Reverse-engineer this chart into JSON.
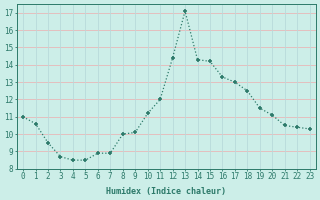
{
  "x": [
    0,
    1,
    2,
    3,
    4,
    5,
    6,
    7,
    8,
    9,
    10,
    11,
    12,
    13,
    14,
    15,
    16,
    17,
    18,
    19,
    20,
    21,
    22,
    23
  ],
  "y": [
    11.0,
    10.6,
    9.5,
    8.7,
    8.5,
    8.5,
    8.9,
    8.9,
    10.0,
    10.1,
    11.2,
    12.0,
    14.4,
    17.1,
    14.3,
    14.2,
    13.3,
    13.0,
    12.5,
    11.5,
    11.1,
    10.5,
    10.4,
    10.3
  ],
  "line_color": "#2d7a6a",
  "marker": "+",
  "bg_color": "#cceee8",
  "grid_color_h": "#e8b8b8",
  "grid_color_v": "#b8dada",
  "xlabel": "Humidex (Indice chaleur)",
  "ylim": [
    8,
    17.5
  ],
  "xlim": [
    -0.5,
    23.5
  ],
  "yticks": [
    8,
    9,
    10,
    11,
    12,
    13,
    14,
    15,
    16,
    17
  ],
  "xticks": [
    0,
    1,
    2,
    3,
    4,
    5,
    6,
    7,
    8,
    9,
    10,
    11,
    12,
    13,
    14,
    15,
    16,
    17,
    18,
    19,
    20,
    21,
    22,
    23
  ],
  "tick_color": "#2d7a6a",
  "label_fontsize": 6,
  "tick_fontsize": 5.5
}
